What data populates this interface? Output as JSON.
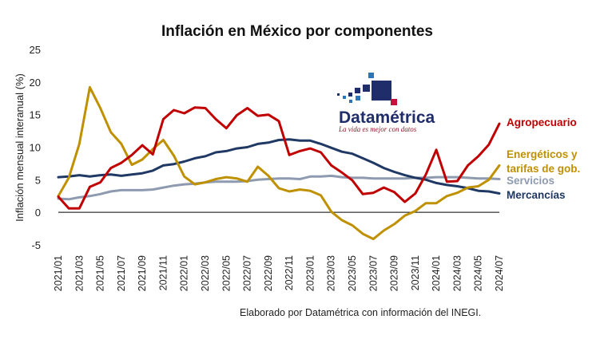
{
  "colors": {
    "agro": "#c00000",
    "energeticos": "#bf9000",
    "servicios": "#8e9aaf",
    "mercancias": "#1f3864",
    "axis": "#000000",
    "logo_dark": "#1f2d6b",
    "logo_red": "#c0143c",
    "logo_blue": "#2e75b6"
  },
  "logo": {
    "name": "Datamétrica",
    "tagline": "La vida es mejor con datos"
  },
  "source_note": "Elaborado por Datamétrica con información del INEGI.",
  "chart_data": {
    "type": "line",
    "title": "Inflación en México por componentes",
    "ylabel": "Inflación mensual interanual (%)",
    "xlabel": "",
    "ylim": [
      -5,
      25
    ],
    "yticks": [
      -5,
      0,
      5,
      10,
      15,
      20,
      25
    ],
    "grid": false,
    "legend": "right, inline labels at series ends",
    "x": [
      "2021/01",
      "2021/02",
      "2021/03",
      "2021/04",
      "2021/05",
      "2021/06",
      "2021/07",
      "2021/08",
      "2021/09",
      "2021/10",
      "2021/11",
      "2021/12",
      "2022/01",
      "2022/02",
      "2022/03",
      "2022/04",
      "2022/05",
      "2022/06",
      "2022/07",
      "2022/08",
      "2022/09",
      "2022/10",
      "2022/11",
      "2022/12",
      "2023/01",
      "2023/02",
      "2023/03",
      "2023/04",
      "2023/05",
      "2023/06",
      "2023/07",
      "2023/08",
      "2023/09",
      "2023/10",
      "2023/11",
      "2023/12",
      "2024/01",
      "2024/02",
      "2024/03",
      "2024/04",
      "2024/05",
      "2024/06",
      "2024/07"
    ],
    "x_tick_labels": [
      "2021/01",
      "2021/03",
      "2021/05",
      "2021/07",
      "2021/09",
      "2021/11",
      "2022/01",
      "2022/03",
      "2022/05",
      "2022/07",
      "2022/09",
      "2022/11",
      "2023/01",
      "2023/03",
      "2023/05",
      "2023/07",
      "2023/09",
      "2023/11",
      "2024/01",
      "2024/03",
      "2024/05",
      "2024/07"
    ],
    "series": [
      {
        "name": "Agropecuario",
        "color_key": "agro",
        "values": [
          2.4,
          0.6,
          0.6,
          3.9,
          4.6,
          6.8,
          7.6,
          8.8,
          10.3,
          8.9,
          14.3,
          15.7,
          15.2,
          16.1,
          16.0,
          14.3,
          12.9,
          14.9,
          16.0,
          14.8,
          15.0,
          14.0,
          8.8,
          9.4,
          9.8,
          9.2,
          7.2,
          6.1,
          4.9,
          2.8,
          3.0,
          3.8,
          3.1,
          1.6,
          2.9,
          5.8,
          9.6,
          4.7,
          4.8,
          7.2,
          8.6,
          10.4,
          13.6
        ]
      },
      {
        "name": "Energéticos y tarifas de gob.",
        "color_key": "energeticos",
        "values": [
          2.5,
          5.3,
          10.5,
          19.2,
          16.0,
          12.3,
          10.5,
          7.3,
          8.1,
          9.7,
          11.1,
          8.7,
          5.5,
          4.3,
          4.6,
          5.1,
          5.4,
          5.2,
          4.7,
          7.0,
          5.6,
          3.7,
          3.2,
          3.5,
          3.3,
          2.6,
          0.1,
          -1.2,
          -2.0,
          -3.3,
          -4.1,
          -2.8,
          -1.8,
          -0.5,
          0.2,
          1.4,
          1.4,
          2.5,
          3.0,
          3.8,
          4.0,
          5.0,
          7.2
        ]
      },
      {
        "name": "Servicios",
        "color_key": "servicios",
        "values": [
          2.1,
          2.0,
          2.3,
          2.5,
          2.8,
          3.2,
          3.4,
          3.4,
          3.4,
          3.5,
          3.8,
          4.1,
          4.3,
          4.4,
          4.6,
          4.7,
          4.7,
          4.7,
          4.8,
          5.0,
          5.1,
          5.2,
          5.2,
          5.1,
          5.5,
          5.5,
          5.6,
          5.4,
          5.3,
          5.3,
          5.2,
          5.2,
          5.2,
          5.2,
          5.3,
          5.3,
          5.4,
          5.4,
          5.4,
          5.3,
          5.2,
          5.2,
          5.1
        ]
      },
      {
        "name": "Mercancías",
        "color_key": "mercancias",
        "values": [
          5.4,
          5.5,
          5.7,
          5.5,
          5.7,
          5.8,
          5.6,
          5.8,
          6.0,
          6.4,
          7.2,
          7.4,
          7.8,
          8.3,
          8.6,
          9.2,
          9.4,
          9.8,
          10.0,
          10.5,
          10.7,
          11.1,
          11.2,
          11.0,
          11.0,
          10.5,
          9.9,
          9.3,
          9.0,
          8.3,
          7.6,
          6.8,
          6.2,
          5.7,
          5.3,
          5.0,
          4.5,
          4.2,
          4.0,
          3.7,
          3.3,
          3.2,
          2.9
        ]
      }
    ],
    "end_labels": [
      {
        "series": "Agropecuario",
        "lines": [
          "Agropecuario"
        ]
      },
      {
        "series": "Energéticos y tarifas de gob.",
        "lines": [
          "Energéticos y",
          "tarifas de gob."
        ]
      },
      {
        "series": "Servicios",
        "lines": [
          "Servicios"
        ]
      },
      {
        "series": "Mercancías",
        "lines": [
          "Mercancías"
        ]
      }
    ]
  }
}
